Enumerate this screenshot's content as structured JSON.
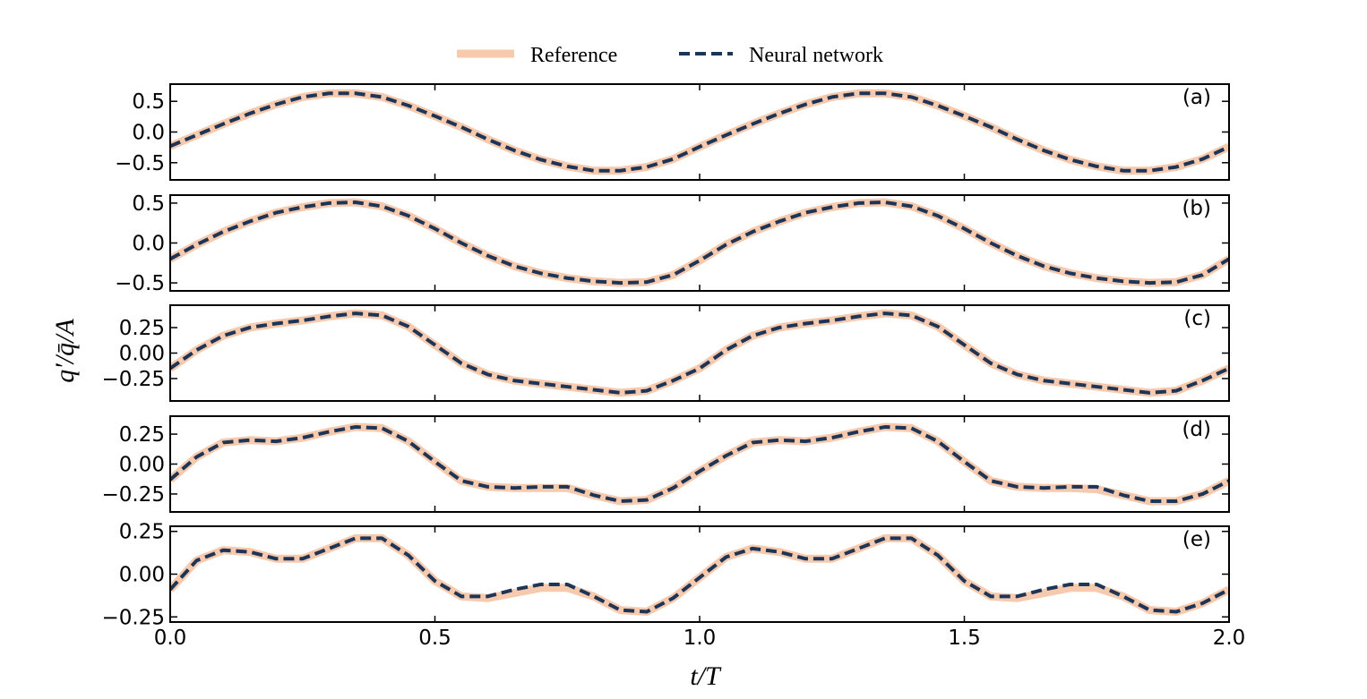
{
  "legend": {
    "reference_label": "Reference",
    "network_label": "Neural network"
  },
  "colors": {
    "reference": "#f7c9ad",
    "network": "#1d3557",
    "axes": "#000000"
  },
  "chart_data": {
    "type": "line",
    "xlabel": "t/T",
    "ylabel": "q′/q̄/A",
    "xlim": [
      0.0,
      2.0
    ],
    "xticks": [
      0.0,
      0.5,
      1.0,
      1.5,
      2.0
    ],
    "xtick_labels": [
      "0.0",
      "0.5",
      "1.0",
      "1.5",
      "2.0"
    ],
    "series_names": [
      "Reference",
      "Neural network"
    ],
    "panels": [
      {
        "label": "(a)",
        "ylim": [
          -0.78,
          0.78
        ],
        "yticks": [
          0.5,
          0.0,
          -0.5
        ],
        "ytick_labels": [
          "0.5",
          "0.0",
          "−0.5"
        ],
        "x": [
          0.0,
          0.05,
          0.1,
          0.15,
          0.2,
          0.25,
          0.3,
          0.35,
          0.4,
          0.45,
          0.5,
          0.55,
          0.6,
          0.65,
          0.7,
          0.75,
          0.8,
          0.85,
          0.9,
          0.95,
          1.0,
          1.05,
          1.1,
          1.15,
          1.2,
          1.25,
          1.3,
          1.35,
          1.4,
          1.45,
          1.5,
          1.55,
          1.6,
          1.65,
          1.7,
          1.75,
          1.8,
          1.85,
          1.9,
          1.95,
          2.0
        ],
        "reference": [
          -0.23,
          -0.05,
          0.13,
          0.3,
          0.45,
          0.57,
          0.63,
          0.63,
          0.57,
          0.43,
          0.26,
          0.08,
          -0.12,
          -0.3,
          -0.45,
          -0.56,
          -0.63,
          -0.63,
          -0.57,
          -0.44,
          -0.24,
          -0.05,
          0.13,
          0.3,
          0.45,
          0.57,
          0.63,
          0.63,
          0.57,
          0.43,
          0.26,
          0.08,
          -0.12,
          -0.3,
          -0.45,
          -0.56,
          -0.63,
          -0.63,
          -0.57,
          -0.44,
          -0.24
        ],
        "network": [
          -0.23,
          -0.05,
          0.13,
          0.3,
          0.45,
          0.57,
          0.63,
          0.63,
          0.57,
          0.43,
          0.26,
          0.08,
          -0.12,
          -0.3,
          -0.45,
          -0.56,
          -0.63,
          -0.63,
          -0.57,
          -0.44,
          -0.24,
          -0.05,
          0.13,
          0.3,
          0.45,
          0.57,
          0.63,
          0.63,
          0.57,
          0.43,
          0.26,
          0.08,
          -0.12,
          -0.3,
          -0.45,
          -0.56,
          -0.63,
          -0.63,
          -0.57,
          -0.44,
          -0.24
        ]
      },
      {
        "label": "(b)",
        "ylim": [
          -0.6,
          0.6
        ],
        "yticks": [
          0.5,
          0.0,
          -0.5
        ],
        "ytick_labels": [
          "0.5",
          "0.0",
          "−0.5"
        ],
        "x": [
          0.0,
          0.05,
          0.1,
          0.15,
          0.2,
          0.25,
          0.3,
          0.35,
          0.4,
          0.45,
          0.5,
          0.55,
          0.6,
          0.65,
          0.7,
          0.75,
          0.8,
          0.85,
          0.9,
          0.95,
          1.0,
          1.05,
          1.1,
          1.15,
          1.2,
          1.25,
          1.3,
          1.35,
          1.4,
          1.45,
          1.5,
          1.55,
          1.6,
          1.65,
          1.7,
          1.75,
          1.8,
          1.85,
          1.9,
          1.95,
          2.0
        ],
        "reference": [
          -0.2,
          -0.02,
          0.14,
          0.27,
          0.38,
          0.45,
          0.5,
          0.51,
          0.46,
          0.34,
          0.18,
          0.0,
          -0.16,
          -0.29,
          -0.38,
          -0.44,
          -0.48,
          -0.5,
          -0.49,
          -0.4,
          -0.22,
          -0.02,
          0.14,
          0.27,
          0.38,
          0.45,
          0.5,
          0.51,
          0.46,
          0.34,
          0.18,
          0.0,
          -0.16,
          -0.29,
          -0.38,
          -0.44,
          -0.48,
          -0.5,
          -0.49,
          -0.4,
          -0.2
        ],
        "network": [
          -0.2,
          -0.02,
          0.14,
          0.27,
          0.38,
          0.45,
          0.5,
          0.51,
          0.46,
          0.34,
          0.18,
          0.0,
          -0.16,
          -0.29,
          -0.38,
          -0.44,
          -0.48,
          -0.5,
          -0.49,
          -0.4,
          -0.22,
          -0.02,
          0.14,
          0.27,
          0.38,
          0.45,
          0.5,
          0.51,
          0.46,
          0.34,
          0.18,
          0.0,
          -0.16,
          -0.29,
          -0.38,
          -0.44,
          -0.48,
          -0.5,
          -0.49,
          -0.4,
          -0.2
        ]
      },
      {
        "label": "(c)",
        "ylim": [
          -0.47,
          0.47
        ],
        "yticks": [
          0.25,
          0.0,
          -0.25
        ],
        "ytick_labels": [
          "0.25",
          "0.00",
          "−0.25"
        ],
        "x": [
          0.0,
          0.05,
          0.1,
          0.15,
          0.2,
          0.25,
          0.3,
          0.35,
          0.4,
          0.45,
          0.5,
          0.55,
          0.6,
          0.65,
          0.7,
          0.75,
          0.8,
          0.85,
          0.9,
          0.95,
          1.0,
          1.05,
          1.1,
          1.15,
          1.2,
          1.25,
          1.3,
          1.35,
          1.4,
          1.45,
          1.5,
          1.55,
          1.6,
          1.65,
          1.7,
          1.75,
          1.8,
          1.85,
          1.9,
          1.95,
          2.0
        ],
        "reference": [
          -0.15,
          0.03,
          0.17,
          0.25,
          0.29,
          0.32,
          0.36,
          0.39,
          0.37,
          0.26,
          0.08,
          -0.1,
          -0.21,
          -0.27,
          -0.3,
          -0.33,
          -0.36,
          -0.39,
          -0.37,
          -0.27,
          -0.15,
          0.03,
          0.17,
          0.25,
          0.29,
          0.32,
          0.36,
          0.39,
          0.37,
          0.26,
          0.08,
          -0.1,
          -0.21,
          -0.27,
          -0.3,
          -0.33,
          -0.36,
          -0.39,
          -0.37,
          -0.27,
          -0.15
        ],
        "network": [
          -0.15,
          0.03,
          0.17,
          0.25,
          0.29,
          0.32,
          0.36,
          0.39,
          0.37,
          0.26,
          0.08,
          -0.1,
          -0.21,
          -0.27,
          -0.3,
          -0.33,
          -0.36,
          -0.39,
          -0.37,
          -0.27,
          -0.15,
          0.03,
          0.17,
          0.25,
          0.29,
          0.32,
          0.36,
          0.39,
          0.37,
          0.26,
          0.08,
          -0.1,
          -0.21,
          -0.27,
          -0.3,
          -0.33,
          -0.36,
          -0.39,
          -0.37,
          -0.27,
          -0.15
        ]
      },
      {
        "label": "(d)",
        "ylim": [
          -0.4,
          0.4
        ],
        "yticks": [
          0.25,
          0.0,
          -0.25
        ],
        "ytick_labels": [
          "0.25",
          "0.00",
          "−0.25"
        ],
        "x": [
          0.0,
          0.05,
          0.1,
          0.15,
          0.2,
          0.25,
          0.3,
          0.35,
          0.4,
          0.45,
          0.5,
          0.55,
          0.6,
          0.65,
          0.7,
          0.75,
          0.8,
          0.85,
          0.9,
          0.95,
          1.0,
          1.05,
          1.1,
          1.15,
          1.2,
          1.25,
          1.3,
          1.35,
          1.4,
          1.45,
          1.5,
          1.55,
          1.6,
          1.65,
          1.7,
          1.75,
          1.8,
          1.85,
          1.9,
          1.95,
          2.0
        ],
        "reference": [
          -0.13,
          0.06,
          0.18,
          0.2,
          0.19,
          0.22,
          0.27,
          0.31,
          0.3,
          0.19,
          0.02,
          -0.14,
          -0.19,
          -0.2,
          -0.2,
          -0.2,
          -0.26,
          -0.31,
          -0.3,
          -0.2,
          -0.06,
          0.07,
          0.18,
          0.2,
          0.19,
          0.22,
          0.27,
          0.31,
          0.3,
          0.19,
          0.02,
          -0.14,
          -0.19,
          -0.2,
          -0.2,
          -0.21,
          -0.26,
          -0.31,
          -0.31,
          -0.25,
          -0.14
        ],
        "network": [
          -0.13,
          0.06,
          0.18,
          0.2,
          0.19,
          0.22,
          0.27,
          0.31,
          0.3,
          0.19,
          0.02,
          -0.14,
          -0.19,
          -0.2,
          -0.19,
          -0.19,
          -0.26,
          -0.31,
          -0.3,
          -0.2,
          -0.06,
          0.07,
          0.18,
          0.2,
          0.19,
          0.22,
          0.27,
          0.31,
          0.3,
          0.19,
          0.02,
          -0.14,
          -0.19,
          -0.2,
          -0.19,
          -0.19,
          -0.26,
          -0.31,
          -0.31,
          -0.25,
          -0.14
        ]
      },
      {
        "label": "(e)",
        "ylim": [
          -0.28,
          0.28
        ],
        "yticks": [
          0.25,
          0.0,
          -0.25
        ],
        "ytick_labels": [
          "0.25",
          "0.00",
          "−0.25"
        ],
        "x": [
          0.0,
          0.05,
          0.1,
          0.15,
          0.2,
          0.25,
          0.3,
          0.35,
          0.4,
          0.45,
          0.5,
          0.55,
          0.6,
          0.65,
          0.7,
          0.75,
          0.8,
          0.85,
          0.9,
          0.95,
          1.0,
          1.05,
          1.1,
          1.15,
          1.2,
          1.25,
          1.3,
          1.35,
          1.4,
          1.45,
          1.5,
          1.55,
          1.6,
          1.65,
          1.7,
          1.75,
          1.8,
          1.85,
          1.9,
          1.95,
          2.0
        ],
        "reference": [
          -0.09,
          0.08,
          0.14,
          0.13,
          0.09,
          0.09,
          0.15,
          0.21,
          0.21,
          0.11,
          -0.04,
          -0.13,
          -0.14,
          -0.11,
          -0.08,
          -0.08,
          -0.13,
          -0.21,
          -0.22,
          -0.14,
          -0.02,
          0.1,
          0.15,
          0.13,
          0.09,
          0.09,
          0.15,
          0.21,
          0.21,
          0.11,
          -0.04,
          -0.13,
          -0.14,
          -0.11,
          -0.08,
          -0.08,
          -0.13,
          -0.21,
          -0.22,
          -0.17,
          -0.09
        ],
        "network": [
          -0.09,
          0.08,
          0.14,
          0.13,
          0.09,
          0.09,
          0.15,
          0.21,
          0.21,
          0.11,
          -0.04,
          -0.13,
          -0.13,
          -0.09,
          -0.06,
          -0.06,
          -0.13,
          -0.21,
          -0.22,
          -0.14,
          -0.02,
          0.1,
          0.15,
          0.13,
          0.09,
          0.09,
          0.15,
          0.21,
          0.21,
          0.11,
          -0.04,
          -0.13,
          -0.13,
          -0.09,
          -0.06,
          -0.06,
          -0.13,
          -0.21,
          -0.22,
          -0.17,
          -0.09
        ]
      }
    ]
  }
}
